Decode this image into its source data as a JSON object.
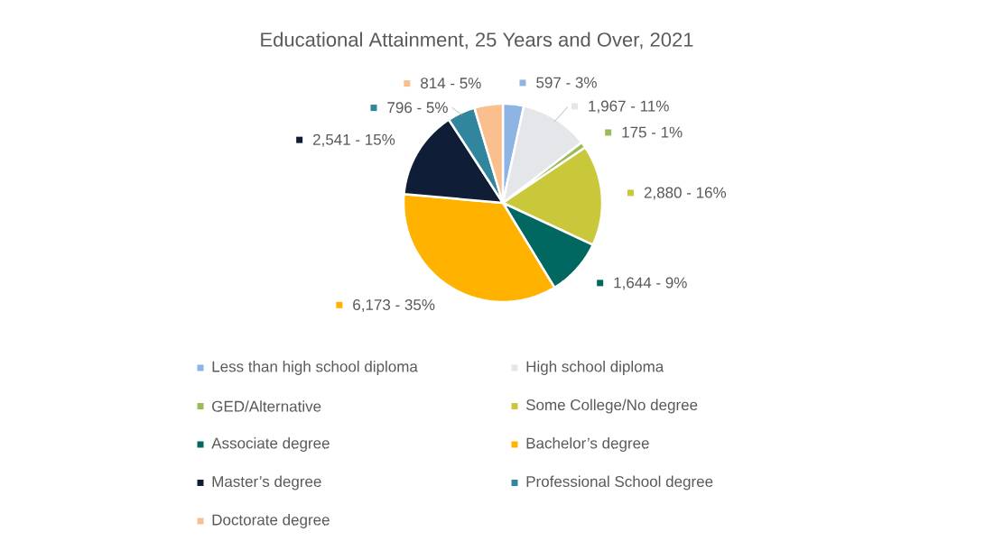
{
  "chart_data": {
    "type": "pie",
    "title": "Educational Attainment, 25 Years and Over, 2021",
    "categories": [
      "Less than high school diploma",
      "High school diploma",
      "GED/Alternative",
      "Some College/No degree",
      "Associate degree",
      "Bachelor’s degree",
      "Master’s degree",
      "Professional School degree",
      "Doctorate degree"
    ],
    "values": [
      597,
      1967,
      175,
      2880,
      1644,
      6173,
      2541,
      796,
      814
    ],
    "value_labels": [
      "597 - 3%",
      "1,967 - 11%",
      "175 - 1%",
      "2,880 - 16%",
      "1,644 - 9%",
      "6,173 - 35%",
      "2,541 - 15%",
      "796 - 5%",
      "814 - 5%"
    ],
    "colors": [
      "#8eb4e3",
      "#e4e6ea",
      "#9bbb59",
      "#c9c83a",
      "#006860",
      "#ffb300",
      "#0f1e36",
      "#31859c",
      "#f9bf8f"
    ],
    "legend": "bottom"
  }
}
